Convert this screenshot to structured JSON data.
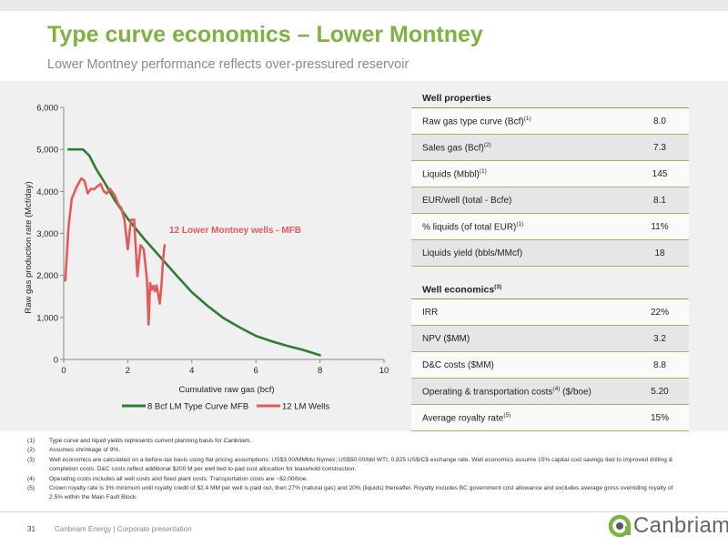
{
  "header": {
    "title": "Type curve economics – Lower Montney",
    "subtitle": "Lower Montney performance reflects over-pressured reservoir"
  },
  "chart_data": {
    "type": "line",
    "ylabel": "Raw gas production rate (Mcf/day)",
    "xlabel": "Cumulative raw gas (bcf)",
    "xlim": [
      0,
      10
    ],
    "ylim": [
      0,
      6000
    ],
    "x_ticks": [
      "0",
      "2",
      "4",
      "6",
      "8",
      "10"
    ],
    "y_ticks": [
      "0",
      "1,000",
      "2,000",
      "3,000",
      "4,000",
      "5,000",
      "6,000"
    ],
    "annotation": "12 Lower Montney wells - MFB",
    "legend_position": "bottom",
    "series": [
      {
        "name": "8 Bcf LM Type Curve MFB",
        "color": "#2e7d32",
        "x": [
          0.15,
          0.6,
          0.8,
          1.0,
          1.3,
          1.6,
          2.0,
          2.5,
          3.0,
          3.5,
          4.0,
          4.5,
          5.0,
          5.5,
          6.0,
          6.5,
          7.0,
          7.5,
          8.0
        ],
        "y": [
          5000,
          5000,
          4850,
          4550,
          4180,
          3780,
          3350,
          2880,
          2450,
          2020,
          1600,
          1270,
          980,
          760,
          560,
          430,
          320,
          220,
          100
        ]
      },
      {
        "name": "12 LM Wells",
        "color": "#e15b5b",
        "x": [
          0.05,
          0.15,
          0.25,
          0.4,
          0.55,
          0.65,
          0.75,
          0.85,
          0.95,
          1.05,
          1.15,
          1.25,
          1.35,
          1.45,
          1.6,
          1.7,
          1.8,
          1.9,
          2.0,
          2.1,
          2.2,
          2.3,
          2.4,
          2.5,
          2.6,
          2.65,
          2.7,
          2.75,
          2.8,
          2.85,
          2.9,
          2.95,
          3.0,
          3.05,
          3.1,
          3.15
        ],
        "y": [
          1880,
          3150,
          3820,
          4100,
          4310,
          4250,
          3950,
          4060,
          4050,
          4120,
          4180,
          4000,
          3950,
          4060,
          3900,
          3700,
          3600,
          3300,
          2620,
          3320,
          3330,
          1980,
          2720,
          2620,
          1900,
          830,
          1820,
          1660,
          1750,
          1620,
          1760,
          1560,
          1330,
          1760,
          2350,
          2720
        ]
      }
    ]
  },
  "well_properties": {
    "heading": "Well properties",
    "rows": [
      {
        "label": "Raw gas type curve (Bcf)",
        "sup": "(1)",
        "value": "8.0"
      },
      {
        "label": "Sales gas (Bcf)",
        "sup": "(2)",
        "value": "7.3"
      },
      {
        "label": "Liquids (Mbbl)",
        "sup": "(1)",
        "value": "145"
      },
      {
        "label": "EUR/well (total - Bcfe)",
        "sup": "",
        "value": "8.1"
      },
      {
        "label": "% liquids (of total EUR)",
        "sup": "(1)",
        "value": "11%"
      },
      {
        "label": "Liquids yield (bbls/MMcf)",
        "sup": "",
        "value": "18"
      }
    ]
  },
  "well_economics": {
    "heading": "Well economics",
    "heading_sup": "(3)",
    "rows": [
      {
        "label": "IRR",
        "sup": "",
        "value": "22%"
      },
      {
        "label": "NPV ($MM)",
        "sup": "",
        "value": "3.2"
      },
      {
        "label": "D&C costs ($MM)",
        "sup": "",
        "value": "8.8"
      },
      {
        "label": "Operating & transportation costs",
        "sup": "(4)",
        "suffix": " ($/boe)",
        "value": "5.20"
      },
      {
        "label": "Average royalty rate",
        "sup": "(5)",
        "value": "15%"
      }
    ]
  },
  "footnotes": [
    {
      "num": "(1)",
      "text": "Type curve and liquid yields represents current planning basis for Canbriam."
    },
    {
      "num": "(2)",
      "text": "Assumes shrinkage of 9%."
    },
    {
      "num": "(3)",
      "text": "Well economics are calculated on a before-tax basis using flat pricing assumptions: US$3.00/MMbtu Nymex; US$50.00/bbl WTI; 0.825 US$/C$ exchange rate. Well economics assume 15% capital cost savings tied to improved drilling & completion costs. D&C costs reflect additional $200 M per well tied to pad cost allocation for leasehold construction."
    },
    {
      "num": "(4)",
      "text": "Operating costs includes all well costs and fixed plant costs. Transportation costs are ~$2.00/boe."
    },
    {
      "num": "(5)",
      "text": "Crown royalty rate is 3% minimum until royalty credit of $2.4 MM per well is paid out, then 27% (natural gas) and 20% (liquids) thereafter. Royalty includes BC government cost allowance and excludes average gross overriding royalty of 2.5% within the Main Fault Block."
    }
  ],
  "footer": {
    "page": "31",
    "company": "Canbriam Energy  |  Corporate presentation",
    "logo_text": "Canbriam",
    "logo_color": "#7cb342"
  }
}
